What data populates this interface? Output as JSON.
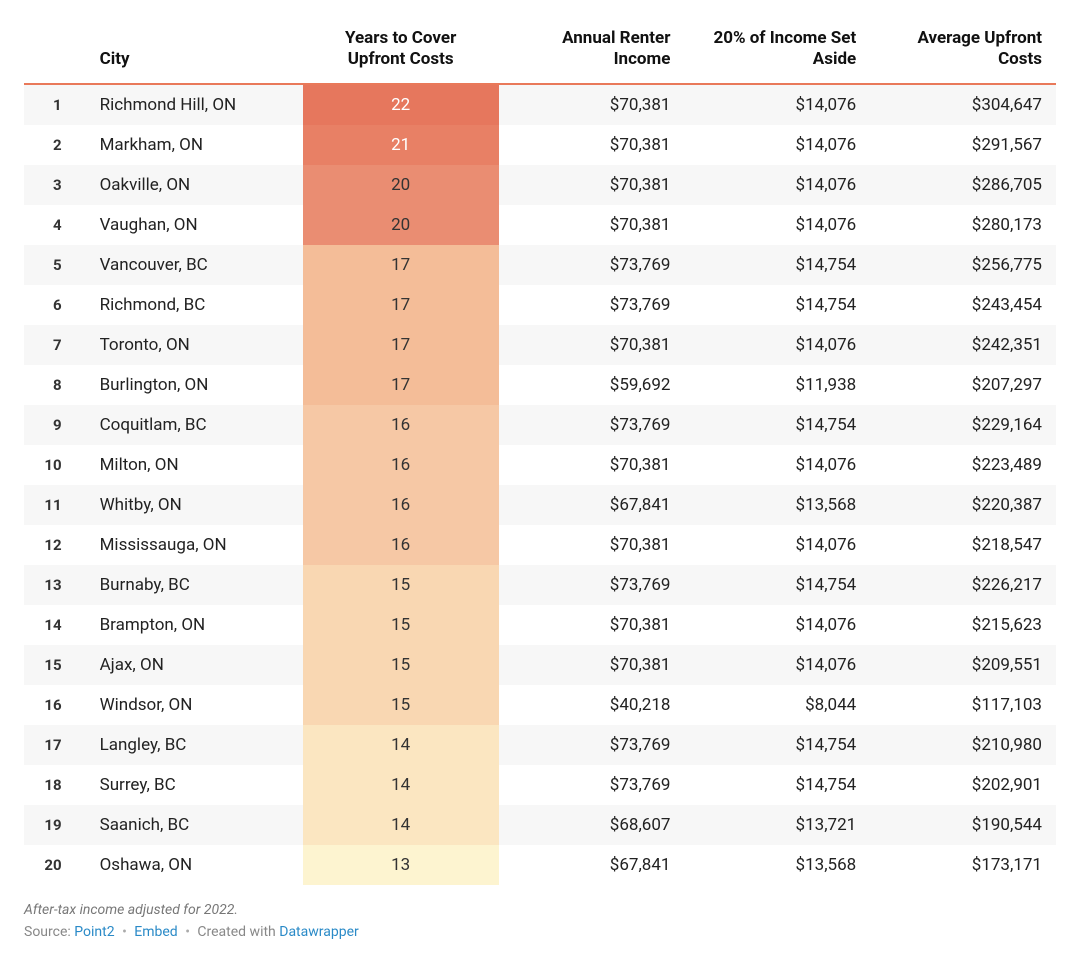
{
  "table": {
    "columns": {
      "rank": "",
      "city": "City",
      "years": "Years to Cover Upfront Costs",
      "income": "Annual Renter Income",
      "setaside": "20% of Income Set Aside",
      "upfront": "Average Upfront Costs"
    },
    "column_align": {
      "rank": "right",
      "city": "left",
      "years": "center",
      "income": "right",
      "setaside": "right",
      "upfront": "right"
    },
    "header_fontsize": 17,
    "body_fontsize": 17,
    "header_border_color": "#e9795a",
    "row_stripe_colors": [
      "#f7f7f7",
      "#ffffff"
    ],
    "years_text_colors": {
      "light": "#ffffff",
      "dark": "#333333"
    },
    "rows": [
      {
        "rank": "1",
        "city": "Richmond Hill, ON",
        "years": "22",
        "income": "$70,381",
        "setaside": "$14,076",
        "upfront": "$304,647",
        "years_bg": "#e6775d",
        "years_fg": "light"
      },
      {
        "rank": "2",
        "city": "Markham, ON",
        "years": "21",
        "income": "$70,381",
        "setaside": "$14,076",
        "upfront": "$291,567",
        "years_bg": "#e88065",
        "years_fg": "light"
      },
      {
        "rank": "3",
        "city": "Oakville, ON",
        "years": "20",
        "income": "$70,381",
        "setaside": "$14,076",
        "upfront": "$286,705",
        "years_bg": "#ea8d72",
        "years_fg": "dark"
      },
      {
        "rank": "4",
        "city": "Vaughan, ON",
        "years": "20",
        "income": "$70,381",
        "setaside": "$14,076",
        "upfront": "$280,173",
        "years_bg": "#ea8d72",
        "years_fg": "dark"
      },
      {
        "rank": "5",
        "city": "Vancouver, BC",
        "years": "17",
        "income": "$73,769",
        "setaside": "$14,754",
        "upfront": "$256,775",
        "years_bg": "#f4bd98",
        "years_fg": "dark"
      },
      {
        "rank": "6",
        "city": "Richmond, BC",
        "years": "17",
        "income": "$73,769",
        "setaside": "$14,754",
        "upfront": "$243,454",
        "years_bg": "#f4bd98",
        "years_fg": "dark"
      },
      {
        "rank": "7",
        "city": "Toronto, ON",
        "years": "17",
        "income": "$70,381",
        "setaside": "$14,076",
        "upfront": "$242,351",
        "years_bg": "#f4bd98",
        "years_fg": "dark"
      },
      {
        "rank": "8",
        "city": "Burlington, ON",
        "years": "17",
        "income": "$59,692",
        "setaside": "$11,938",
        "upfront": "$207,297",
        "years_bg": "#f4bd98",
        "years_fg": "dark"
      },
      {
        "rank": "9",
        "city": "Coquitlam, BC",
        "years": "16",
        "income": "$73,769",
        "setaside": "$14,754",
        "upfront": "$229,164",
        "years_bg": "#f6c8a5",
        "years_fg": "dark"
      },
      {
        "rank": "10",
        "city": "Milton, ON",
        "years": "16",
        "income": "$70,381",
        "setaside": "$14,076",
        "upfront": "$223,489",
        "years_bg": "#f6c8a5",
        "years_fg": "dark"
      },
      {
        "rank": "11",
        "city": "Whitby, ON",
        "years": "16",
        "income": "$67,841",
        "setaside": "$13,568",
        "upfront": "$220,387",
        "years_bg": "#f6c8a5",
        "years_fg": "dark"
      },
      {
        "rank": "12",
        "city": "Mississauga, ON",
        "years": "16",
        "income": "$70,381",
        "setaside": "$14,076",
        "upfront": "$218,547",
        "years_bg": "#f6c8a5",
        "years_fg": "dark"
      },
      {
        "rank": "13",
        "city": "Burnaby, BC",
        "years": "15",
        "income": "$73,769",
        "setaside": "$14,754",
        "upfront": "$226,217",
        "years_bg": "#f9d7b2",
        "years_fg": "dark"
      },
      {
        "rank": "14",
        "city": "Brampton, ON",
        "years": "15",
        "income": "$70,381",
        "setaside": "$14,076",
        "upfront": "$215,623",
        "years_bg": "#f9d7b2",
        "years_fg": "dark"
      },
      {
        "rank": "15",
        "city": "Ajax, ON",
        "years": "15",
        "income": "$70,381",
        "setaside": "$14,076",
        "upfront": "$209,551",
        "years_bg": "#f9d7b2",
        "years_fg": "dark"
      },
      {
        "rank": "16",
        "city": "Windsor, ON",
        "years": "15",
        "income": "$40,218",
        "setaside": "$8,044",
        "upfront": "$117,103",
        "years_bg": "#f9d7b2",
        "years_fg": "dark"
      },
      {
        "rank": "17",
        "city": "Langley, BC",
        "years": "14",
        "income": "$73,769",
        "setaside": "$14,754",
        "upfront": "$210,980",
        "years_bg": "#fbe6c1",
        "years_fg": "dark"
      },
      {
        "rank": "18",
        "city": "Surrey, BC",
        "years": "14",
        "income": "$73,769",
        "setaside": "$14,754",
        "upfront": "$202,901",
        "years_bg": "#fbe6c1",
        "years_fg": "dark"
      },
      {
        "rank": "19",
        "city": "Saanich, BC",
        "years": "14",
        "income": "$68,607",
        "setaside": "$13,721",
        "upfront": "$190,544",
        "years_bg": "#fbe6c1",
        "years_fg": "dark"
      },
      {
        "rank": "20",
        "city": "Oshawa, ON",
        "years": "13",
        "income": "$67,841",
        "setaside": "$13,568",
        "upfront": "$173,171",
        "years_bg": "#fdf4d0",
        "years_fg": "dark"
      }
    ]
  },
  "footnotes": {
    "note": "After-tax income adjusted for 2022.",
    "source_label": "Source:",
    "source_link_text": "Point2",
    "embed_link_text": "Embed",
    "created_with_label": "Created with",
    "created_with_link_text": "Datawrapper",
    "link_color": "#2a8ac7"
  }
}
